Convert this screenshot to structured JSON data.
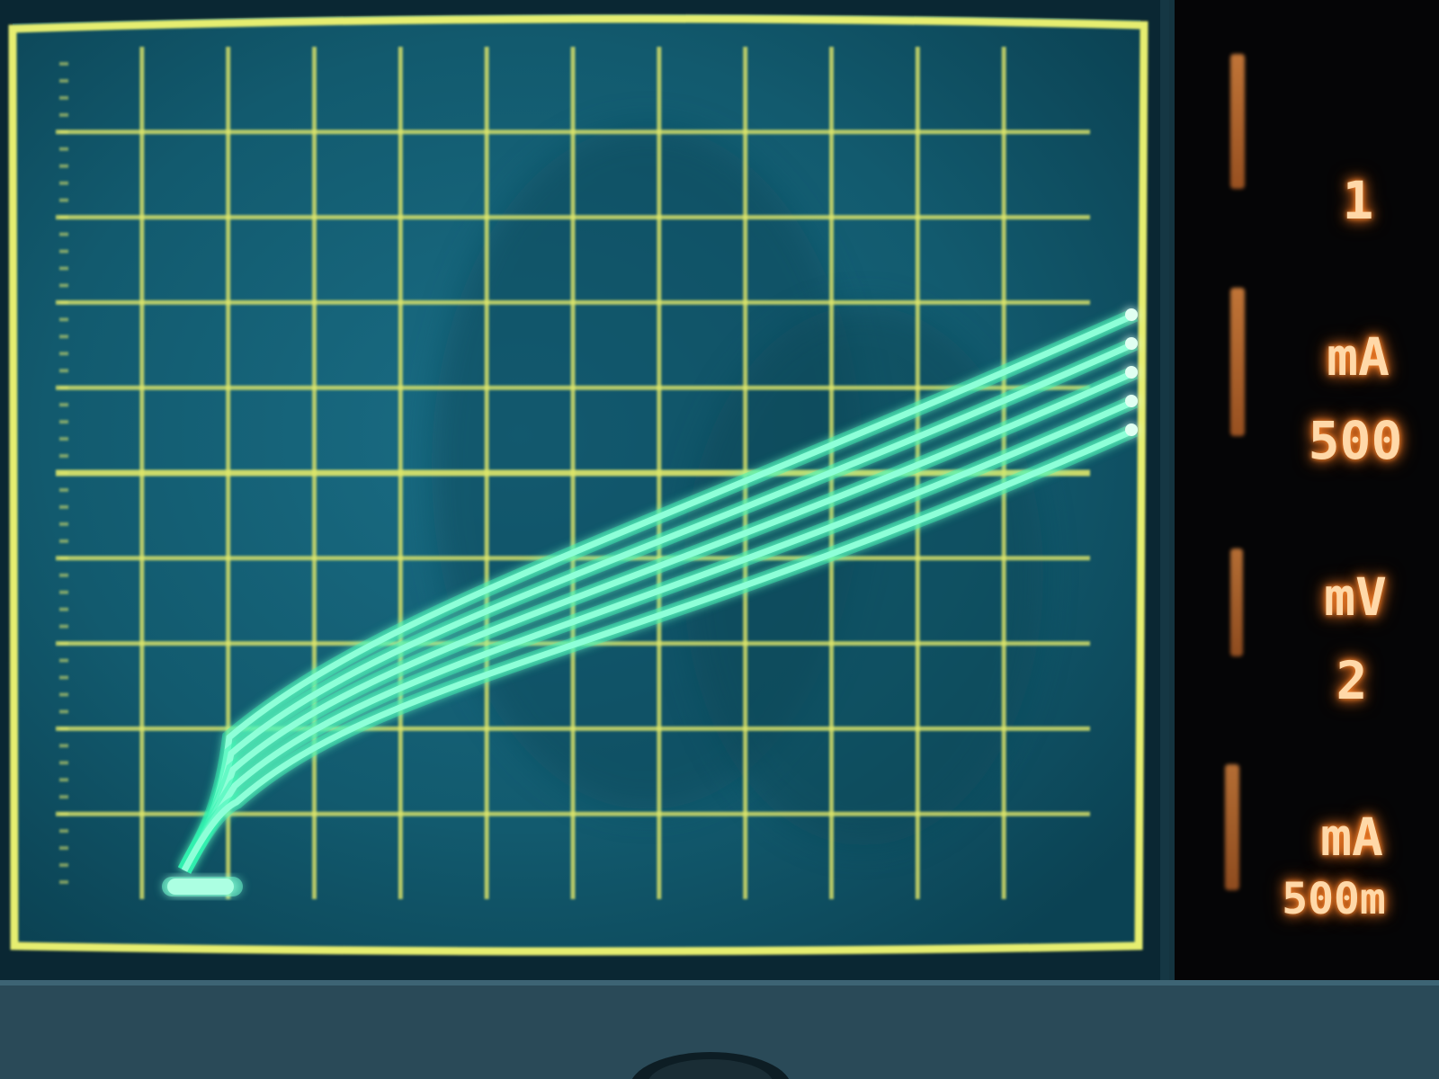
{
  "scene": "Curve tracer oscilloscope screen showing a family of transistor characteristic curves",
  "colors": {
    "graticule": "#e0e86a",
    "screen": "#0f5266",
    "trace": "#2ef2b0",
    "readout": "#ffb070"
  },
  "readouts": {
    "vertical": {
      "value": "1",
      "unit": "mA"
    },
    "horizontal": {
      "value": "500",
      "unit": "mV"
    },
    "step": {
      "value": "2",
      "unit": "mA"
    },
    "gain": {
      "value": "500m"
    }
  },
  "graticule": {
    "columns": 12,
    "rows": 10
  },
  "traces": {
    "count": 5
  }
}
